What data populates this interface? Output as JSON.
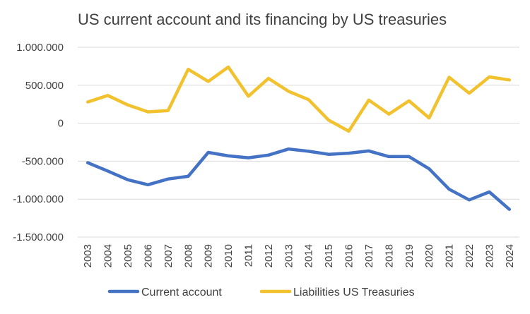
{
  "chart_data": {
    "type": "line",
    "title": "US current account and its financing by US treasuries",
    "xlabel": "",
    "ylabel": "",
    "ylim": [
      -1500000,
      1000000
    ],
    "yticks": [
      "1.000.000",
      "500.000",
      "0",
      "-500.000",
      "-1.000.000",
      "-1.500.000"
    ],
    "ytick_values": [
      1000000,
      500000,
      0,
      -500000,
      -1000000,
      -1500000
    ],
    "grid": true,
    "legend_position": "bottom",
    "categories": [
      "2003",
      "2004",
      "2005",
      "2006",
      "2007",
      "2008",
      "2009",
      "2010",
      "2011",
      "2012",
      "2013",
      "2014",
      "2015",
      "2016",
      "2017",
      "2018",
      "2019",
      "2020",
      "2021",
      "2022",
      "2023",
      "2024"
    ],
    "series": [
      {
        "name": "Current account",
        "color": "#4472c4",
        "values": [
          -520000,
          -630000,
          -745000,
          -810000,
          -735000,
          -700000,
          -385000,
          -430000,
          -455000,
          -420000,
          -340000,
          -370000,
          -410000,
          -395000,
          -365000,
          -440000,
          -440000,
          -600000,
          -870000,
          -1010000,
          -905000,
          -1135000
        ]
      },
      {
        "name": "Liabilities US Treasuries",
        "color": "#f2c12e",
        "values": [
          280000,
          365000,
          240000,
          150000,
          165000,
          710000,
          550000,
          740000,
          355000,
          590000,
          420000,
          310000,
          40000,
          -105000,
          305000,
          120000,
          295000,
          70000,
          605000,
          395000,
          610000,
          570000
        ]
      }
    ]
  }
}
